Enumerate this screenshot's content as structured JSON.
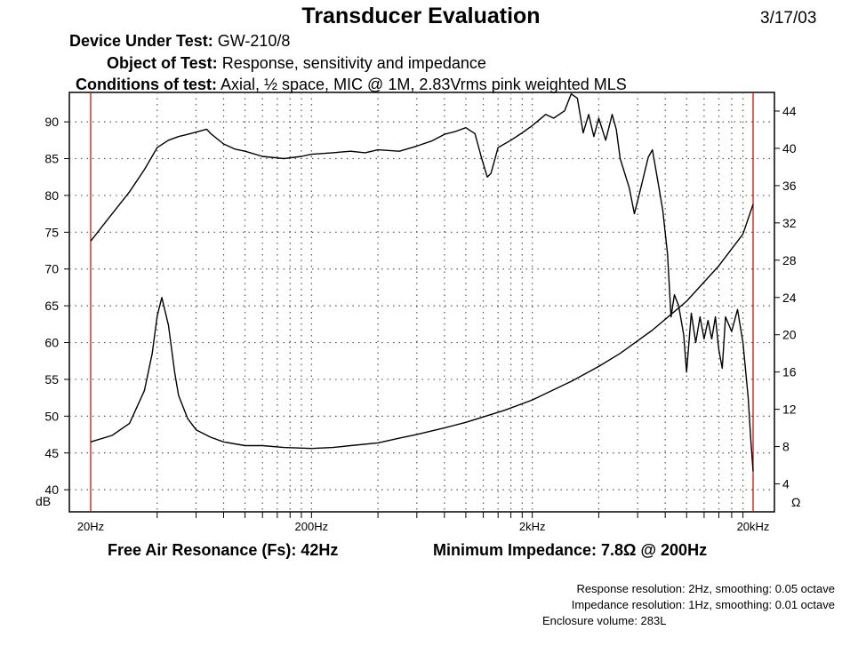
{
  "header": {
    "title": "Transducer Evaluation",
    "date": "3/17/03",
    "device_label": "Device Under Test:",
    "device_value": "GW-210/8",
    "object_label": "Object of Test:",
    "object_value": "Response, sensitivity and impedance",
    "conditions_label": "Conditions of test:",
    "conditions_value": "Axial, ½ space, MIC @ 1M, 2.83Vrms pink weighted MLS"
  },
  "summary": {
    "resonance": "Free Air Resonance (Fs): 42Hz",
    "min_impedance": "Minimum Impedance: 7.8Ω @ 200Hz"
  },
  "notes": {
    "response_resolution": "Response resolution: 2Hz, smoothing: 0.05 octave",
    "impedance_resolution": "Impedance resolution: 1Hz, smoothing: 0.01 octave",
    "enclosure_volume": "Enclosure volume: 283L"
  },
  "colors": {
    "background": "#ffffff",
    "curve": "#000000",
    "grid": "#555555",
    "limit_lines": "#cc0000"
  },
  "chart_data": {
    "type": "line",
    "x_scale": "log",
    "xlim": [
      20,
      20000
    ],
    "x_ticks": [
      20,
      200,
      2000,
      20000
    ],
    "x_tick_labels": [
      "20Hz",
      "200Hz",
      "2kHz",
      "20kHz"
    ],
    "y_left_label": "dB",
    "y_left_lim": [
      37,
      94
    ],
    "y_left_ticks": [
      40,
      45,
      50,
      55,
      60,
      65,
      70,
      75,
      80,
      85,
      90
    ],
    "y_right_label": "Ω",
    "y_right_lim": [
      1,
      46
    ],
    "y_right_ticks": [
      4,
      8,
      12,
      16,
      20,
      24,
      28,
      32,
      36,
      40,
      44
    ],
    "grid": true,
    "limit_lines_hz": [
      20,
      20000
    ],
    "series": [
      {
        "axis": "left",
        "points": [
          [
            20,
            73.8
          ],
          [
            25,
            77.5
          ],
          [
            30,
            80.5
          ],
          [
            35,
            83.5
          ],
          [
            40,
            86.5
          ],
          [
            45,
            87.5
          ],
          [
            50,
            88
          ],
          [
            55,
            88.3
          ],
          [
            60,
            88.6
          ],
          [
            67,
            89
          ],
          [
            70,
            88.4
          ],
          [
            80,
            87
          ],
          [
            90,
            86.3
          ],
          [
            100,
            86
          ],
          [
            120,
            85.3
          ],
          [
            150,
            85
          ],
          [
            180,
            85.3
          ],
          [
            200,
            85.6
          ],
          [
            250,
            85.8
          ],
          [
            300,
            86
          ],
          [
            350,
            85.8
          ],
          [
            400,
            86.2
          ],
          [
            500,
            86
          ],
          [
            600,
            86.7
          ],
          [
            700,
            87.4
          ],
          [
            800,
            88.3
          ],
          [
            900,
            88.7
          ],
          [
            1000,
            89.2
          ],
          [
            1100,
            88.4
          ],
          [
            1180,
            85
          ],
          [
            1250,
            82.5
          ],
          [
            1300,
            83
          ],
          [
            1400,
            86.5
          ],
          [
            1600,
            87.5
          ],
          [
            1800,
            88.5
          ],
          [
            2000,
            89.5
          ],
          [
            2300,
            91
          ],
          [
            2500,
            90.5
          ],
          [
            2800,
            91.5
          ],
          [
            3000,
            93.8
          ],
          [
            3200,
            93.2
          ],
          [
            3400,
            88.5
          ],
          [
            3600,
            91
          ],
          [
            3800,
            88
          ],
          [
            4000,
            90.5
          ],
          [
            4300,
            87.5
          ],
          [
            4600,
            91
          ],
          [
            4800,
            89
          ],
          [
            5000,
            85
          ],
          [
            5500,
            81
          ],
          [
            5800,
            77.5
          ],
          [
            6200,
            81
          ],
          [
            6700,
            85.2
          ],
          [
            7000,
            86.2
          ],
          [
            7500,
            81
          ],
          [
            7800,
            78
          ],
          [
            8200,
            72
          ],
          [
            8500,
            63.5
          ],
          [
            8800,
            66.5
          ],
          [
            9200,
            65
          ],
          [
            9700,
            61
          ],
          [
            10000,
            56
          ],
          [
            10500,
            64
          ],
          [
            11000,
            60
          ],
          [
            11500,
            63.5
          ],
          [
            12000,
            60.5
          ],
          [
            12500,
            63
          ],
          [
            13000,
            60.5
          ],
          [
            13500,
            63.5
          ],
          [
            14000,
            59
          ],
          [
            14500,
            56.5
          ],
          [
            15000,
            63.5
          ],
          [
            16000,
            61.5
          ],
          [
            17000,
            64.5
          ],
          [
            18000,
            60
          ],
          [
            19000,
            52.5
          ],
          [
            19500,
            47
          ],
          [
            20000,
            42.5
          ]
        ]
      },
      {
        "axis": "right",
        "points": [
          [
            20,
            8.5
          ],
          [
            25,
            9.2
          ],
          [
            30,
            10.5
          ],
          [
            35,
            14
          ],
          [
            38,
            18
          ],
          [
            40,
            22
          ],
          [
            42,
            24
          ],
          [
            45,
            21
          ],
          [
            48,
            16
          ],
          [
            50,
            13.5
          ],
          [
            55,
            11
          ],
          [
            60,
            9.8
          ],
          [
            70,
            9
          ],
          [
            80,
            8.5
          ],
          [
            100,
            8.1
          ],
          [
            120,
            8.1
          ],
          [
            150,
            7.9
          ],
          [
            200,
            7.8
          ],
          [
            250,
            7.9
          ],
          [
            300,
            8.1
          ],
          [
            400,
            8.4
          ],
          [
            500,
            8.9
          ],
          [
            600,
            9.3
          ],
          [
            800,
            10
          ],
          [
            1000,
            10.6
          ],
          [
            1500,
            11.9
          ],
          [
            2000,
            13
          ],
          [
            3000,
            15
          ],
          [
            4000,
            16.6
          ],
          [
            5000,
            18
          ],
          [
            7000,
            20.5
          ],
          [
            10000,
            23.6
          ],
          [
            14000,
            27.4
          ],
          [
            18000,
            30.8
          ],
          [
            20000,
            34
          ]
        ]
      }
    ]
  }
}
